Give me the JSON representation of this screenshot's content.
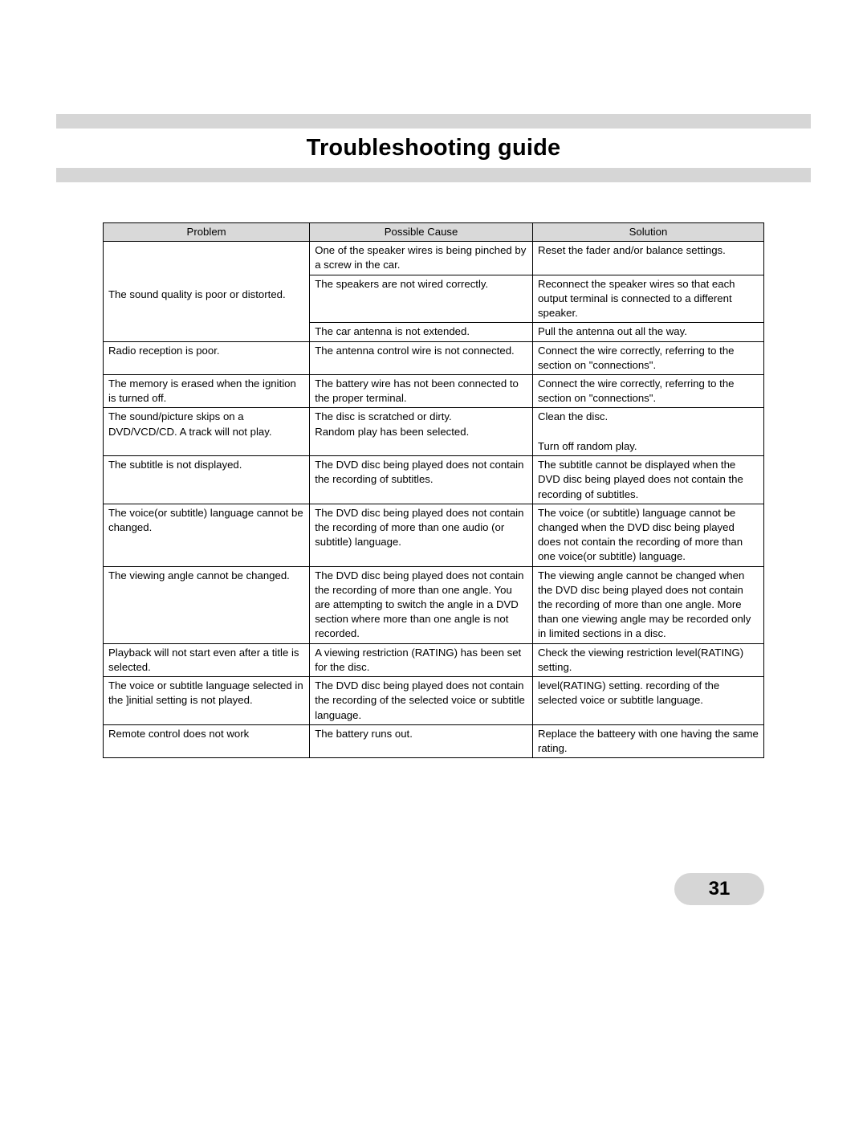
{
  "title": "Troubleshooting guide",
  "page_number": "31",
  "colors": {
    "rule_bg": "#d6d6d6",
    "header_bg": "#d9d9d9",
    "border": "#000000",
    "text": "#000000",
    "page_bg": "#ffffff"
  },
  "table": {
    "columns": [
      "Problem",
      "Possible Cause",
      "Solution"
    ],
    "column_widths_pct": [
      25,
      27,
      28
    ],
    "rows": [
      {
        "problem": "",
        "cause": "One of the speaker wires is being pinched by a screw in the car.",
        "solution": "Reset the fader and/or balance settings."
      },
      {
        "problem": "The sound quality is poor or distorted.",
        "cause": "The speakers are not wired correctly.",
        "solution": "Reconnect the speaker wires so that each output terminal is connected to a different speaker."
      },
      {
        "problem": "",
        "cause": "The car antenna is not extended.",
        "solution": "Pull the antenna out all the way."
      },
      {
        "problem": "Radio reception is poor.",
        "cause": "The antenna control wire is not connected.",
        "solution": "Connect the wire correctly, referring to the section on \"connections\"."
      },
      {
        "problem": "The memory is erased when the ignition is turned off.",
        "cause": "The battery wire has not been connected to the proper terminal.",
        "solution": "Connect the wire correctly, referring to the section on \"connections\"."
      },
      {
        "problem": "The sound/picture skips on a DVD/VCD/CD. A track will not play.",
        "cause_a": "The disc is scratched or dirty.",
        "cause_b": "Random play has been selected.",
        "solution_a": "Clean the disc.",
        "solution_b": "Turn off random play."
      },
      {
        "problem": "The subtitle is not displayed.",
        "cause": "The DVD disc being played does not contain the recording of subtitles.",
        "solution": "The subtitle cannot be displayed when the DVD disc being played does not contain the recording of subtitles."
      },
      {
        "problem": "The voice(or subtitle) language cannot be changed.",
        "cause": "The DVD disc being played does not contain the recording of more than one audio (or subtitle) language.",
        "solution": "The voice (or subtitle) language cannot be changed when the DVD disc being played does not contain the recording of more than one voice(or subtitle) language."
      },
      {
        "problem": "The viewing angle cannot be changed.",
        "cause": "The DVD disc being played does not contain the recording of more than one angle. You are attempting to switch the angle in a DVD section where more than one angle is not recorded.",
        "solution": "The viewing angle cannot be changed when the DVD disc being played does not contain the recording of more than one angle. More than one viewing angle may be recorded only in limited sections in a disc."
      },
      {
        "problem": "Playback will not start even after a title is selected.",
        "cause": "A viewing restriction (RATING) has been set for the disc.",
        "solution": "Check the viewing restriction level(RATING) setting."
      },
      {
        "problem": "The voice or subtitle language selected in the ]initial setting is not played.",
        "cause": "The DVD disc being played does not contain the recording of the selected voice or subtitle language.",
        "solution": "level(RATING) setting. recording of the selected voice or subtitle language."
      },
      {
        "problem": "Remote control does not work",
        "cause": "The battery runs out.",
        "solution": "Replace the batteery with one having the same rating."
      }
    ]
  }
}
